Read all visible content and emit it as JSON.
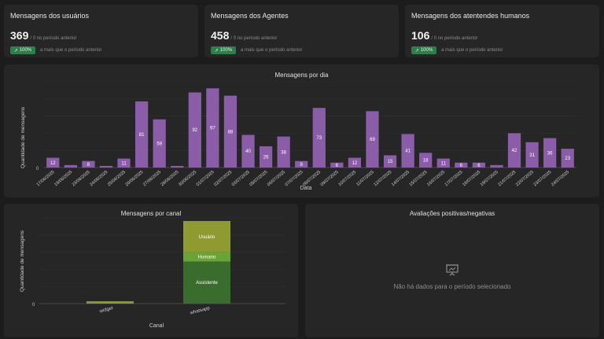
{
  "stats": [
    {
      "title": "Mensagens dos usuários",
      "value": "369",
      "previous": "/ 0 no período anterior",
      "badge": "100%",
      "note": "a mais que o período anterior"
    },
    {
      "title": "Mensagens dos Agentes",
      "value": "458",
      "previous": "/ 0 no período anterior",
      "badge": "100%",
      "note": "a mais que o período anterior"
    },
    {
      "title": "Mensagens dos atentendes humanos",
      "value": "106",
      "previous": "/ 0 no período anterior",
      "badge": "100%",
      "note": "a mais que o período anterior"
    }
  ],
  "colors": {
    "bar": "#8b5ca8",
    "usuario": "#8f9b30",
    "humano": "#6aa336",
    "assistente": "#3a6d2d",
    "widget": "#8a9a2e"
  },
  "daily_chart": {
    "title": "Mensagens por dia",
    "ylabel": "Quantidade de mensagens",
    "xlabel": "Data",
    "y_tick": "0",
    "chart_data": {
      "type": "bar",
      "ylim": [
        0,
        105
      ],
      "categories": [
        "17/06/2025",
        "19/06/2025",
        "23/06/2025",
        "24/06/2025",
        "25/06/2025",
        "26/06/2025",
        "27/06/2025",
        "28/06/2025",
        "30/06/2025",
        "01/07/2025",
        "02/07/2025",
        "03/07/2025",
        "05/07/2025",
        "06/07/2025",
        "07/07/2025",
        "08/07/2025",
        "09/07/2025",
        "10/07/2025",
        "11/07/2025",
        "12/07/2025",
        "14/07/2025",
        "15/07/2025",
        "16/07/2025",
        "17/07/2025",
        "18/07/2025",
        "19/07/2025",
        "21/07/2025",
        "22/07/2025",
        "23/07/2025",
        "24/07/2025"
      ],
      "values": [
        12,
        3,
        8,
        2,
        11,
        81,
        59,
        2,
        92,
        97,
        88,
        40,
        26,
        38,
        8,
        73,
        6,
        12,
        69,
        15,
        41,
        18,
        11,
        6,
        6,
        3,
        42,
        31,
        36,
        23
      ],
      "labels": [
        "12",
        "",
        "8",
        "",
        "11",
        "81",
        "59",
        "",
        "92",
        "97",
        "88",
        "40",
        "26",
        "38",
        "8",
        "73",
        "6",
        "12",
        "69",
        "15",
        "41",
        "18",
        "11",
        "6",
        "6",
        "",
        "42",
        "31",
        "36",
        "23"
      ]
    }
  },
  "channel_chart": {
    "title": "Mensagens por canal",
    "ylabel": "Quantidade de mensagens",
    "xlabel": "Canal",
    "y_tick": "0",
    "chart_data": {
      "type": "bar",
      "stacked": true,
      "categories": [
        "widget",
        "whatsapp"
      ],
      "ylim": [
        0,
        110
      ],
      "series": [
        {
          "name": "Assistente",
          "values": [
            0,
            54
          ]
        },
        {
          "name": "Humano",
          "values": [
            0,
            12
          ]
        },
        {
          "name": "Usuário",
          "values": [
            3,
            40
          ]
        }
      ]
    }
  },
  "ratings": {
    "title": "Avaliações positivas/negativas",
    "icon": "presentation-chart-icon",
    "message": "Não há dados para o período selecionado"
  }
}
